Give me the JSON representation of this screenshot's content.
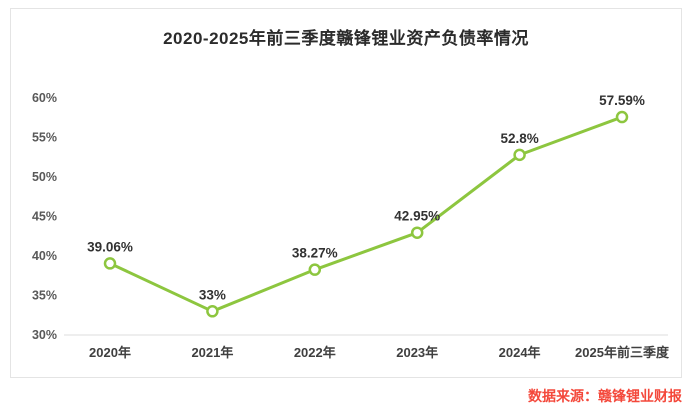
{
  "card": {
    "title": "2020-2025年前三季度赣锋锂业资产负债率情况"
  },
  "source": {
    "label": "数据来源：赣锋锂业财报"
  },
  "chart_data": {
    "type": "line",
    "title": "2020-2025年前三季度赣锋锂业资产负债率情况",
    "categories": [
      "2020年",
      "2021年",
      "2022年",
      "2023年",
      "2024年",
      "2025年前三季度"
    ],
    "values": [
      39.06,
      33,
      38.27,
      42.95,
      52.8,
      57.59
    ],
    "value_labels": [
      "39.06%",
      "33%",
      "38.27%",
      "42.95%",
      "52.8%",
      "57.59%"
    ],
    "xlabel": "",
    "ylabel": "",
    "ylim": [
      30,
      60
    ],
    "ytick_step": 5,
    "ytick_suffix": "%",
    "grid": false,
    "legend_position": "none",
    "marker": "open-circle",
    "colors": {
      "line": "#8dc63f",
      "marker_fill": "#ffffff",
      "axis_line": "#dcdcdc",
      "ytick_label": "#595959",
      "xtick_label": "#3f3f3f",
      "value_label": "#323232",
      "title": "#2b2b2b",
      "source": "#f4483b",
      "card_border": "#e4e4e4"
    }
  }
}
